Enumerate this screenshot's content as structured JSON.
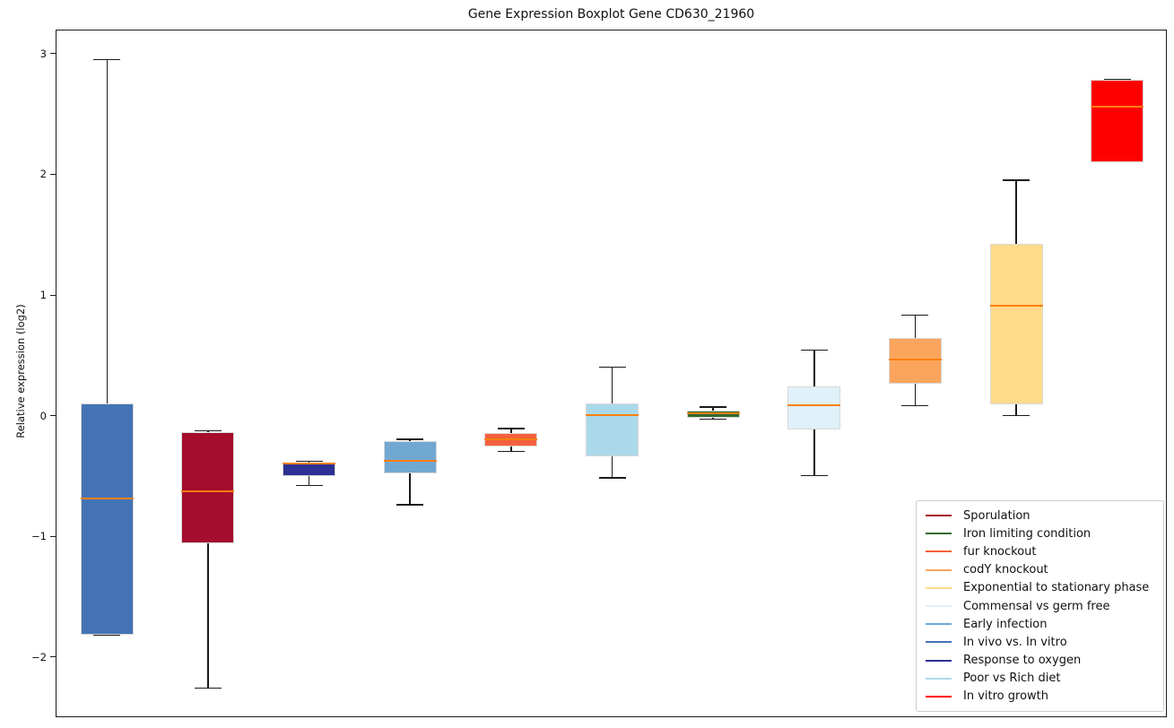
{
  "chart_data": {
    "type": "boxplot",
    "title": "Gene Expression Boxplot Gene CD630_21960",
    "xlabel": "",
    "ylabel": "Relative expression (log2)",
    "ylim": [
      -2.5,
      3.2
    ],
    "ytick_values": [
      3,
      2,
      1,
      0,
      -1,
      -2
    ],
    "ytick_labels": [
      "3",
      "2",
      "1",
      "0",
      "−1",
      "−2"
    ],
    "grid": false,
    "x_tick_labels": [],
    "legend_position": "lower right",
    "series": [
      {
        "name": "In vivo vs. In vitro",
        "color": "#4473b5",
        "whisker_low": -1.81,
        "q1": -1.81,
        "median": -0.68,
        "q3": 0.11,
        "whisker_high": 2.96
      },
      {
        "name": "Sporulation",
        "color": "#a50d2d",
        "whisker_low": -2.25,
        "q1": -1.05,
        "median": -0.62,
        "q3": -0.13,
        "whisker_high": -0.12
      },
      {
        "name": "Response to oxygen",
        "color": "#2c3193",
        "whisker_low": -0.57,
        "q1": -0.49,
        "median": -0.39,
        "q3": -0.38,
        "whisker_high": -0.37
      },
      {
        "name": "Early infection",
        "color": "#71a8d2",
        "whisker_low": -0.73,
        "q1": -0.47,
        "median": -0.37,
        "q3": -0.2,
        "whisker_high": -0.19
      },
      {
        "name": "fur knockout",
        "color": "#f4613c",
        "whisker_low": -0.29,
        "q1": -0.25,
        "median": -0.19,
        "q3": -0.14,
        "whisker_high": -0.1
      },
      {
        "name": "Poor vs Rich diet",
        "color": "#aad9e9",
        "whisker_low": -0.51,
        "q1": -0.33,
        "median": 0.01,
        "q3": 0.11,
        "whisker_high": 0.41
      },
      {
        "name": "Iron limiting condition",
        "color": "#2e6b30",
        "whisker_low": -0.02,
        "q1": -0.01,
        "median": 0.03,
        "q3": 0.05,
        "whisker_high": 0.08
      },
      {
        "name": "Commensal vs germ free",
        "color": "#e0f1f9",
        "whisker_low": -0.49,
        "q1": -0.11,
        "median": 0.09,
        "q3": 0.25,
        "whisker_high": 0.55
      },
      {
        "name": "codY knockout",
        "color": "#fba55c",
        "whisker_low": 0.09,
        "q1": 0.27,
        "median": 0.47,
        "q3": 0.65,
        "whisker_high": 0.84
      },
      {
        "name": "Exponential to stationary phase",
        "color": "#fedb8a",
        "whisker_low": 0.01,
        "q1": 0.1,
        "median": 0.92,
        "q3": 1.43,
        "whisker_high": 1.96
      },
      {
        "name": "In vitro growth",
        "color": "#fe0000",
        "whisker_low": 2.11,
        "q1": 2.11,
        "median": 2.57,
        "q3": 2.79,
        "whisker_high": 2.79
      }
    ],
    "legend_order": [
      "Sporulation",
      "Iron limiting condition",
      "fur knockout",
      "codY knockout",
      "Exponential to stationary phase",
      "Commensal vs germ free",
      "Early infection",
      "In vivo vs. In vitro",
      "Response to oxygen",
      "Poor vs Rich diet",
      "In vitro growth"
    ],
    "style_colors": {
      "median_line": "#ff7f0e",
      "whisker": "#1a1a1a",
      "box_edge": "#d8d8d8",
      "axis": "#1a1a1a"
    }
  }
}
